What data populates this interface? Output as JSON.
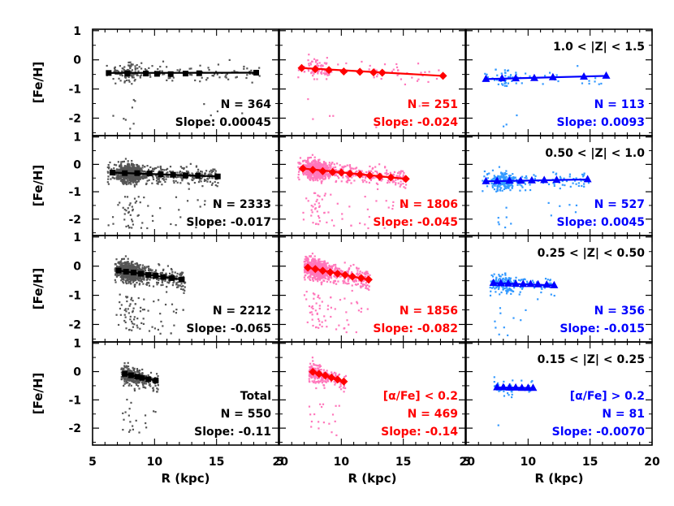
{
  "chart_data": {
    "type": "scatter",
    "figure": {
      "xlabel": "R (kpc)",
      "ylabel": "[Fe/H]",
      "xlim": [
        5,
        20
      ],
      "ylim": [
        -2.6,
        1.05
      ],
      "yticks": [
        -2,
        -1,
        0,
        1
      ],
      "xticks_col0": [
        "5",
        "10",
        "15",
        "20"
      ],
      "xticks_col1": [
        "5",
        "10",
        "15",
        "20"
      ],
      "xticks_col2": [
        "5",
        "10",
        "15",
        "20"
      ],
      "colors": {
        "total_points": "#555555",
        "total_fit": "#000000",
        "low_alpha_points": "#ff77bb",
        "low_alpha_fit": "#ff0000",
        "high_alpha_points": "#3399ff",
        "high_alpha_fit": "#0000ff"
      }
    },
    "rows": [
      {
        "z_label": "1.0 < |Z| < 1.5",
        "panels": [
          {
            "group": "total",
            "n_label": "N = 364",
            "slope_label": "Slope: 0.00045",
            "n": 364,
            "slope": 0.00045,
            "x_range": [
              6.0,
              18.5
            ],
            "intercept_at_x0": -0.45,
            "x0": 6.0,
            "binned": [
              [
                6.3,
                -0.45
              ],
              [
                7.8,
                -0.47
              ],
              [
                9.3,
                -0.47
              ],
              [
                10.2,
                -0.48
              ],
              [
                11.3,
                -0.49
              ],
              [
                12.5,
                -0.47
              ],
              [
                13.6,
                -0.46
              ],
              [
                18.2,
                -0.44
              ]
            ]
          },
          {
            "group": "low_alpha",
            "n_label": "N = 251",
            "slope_label": "Slope: -0.024",
            "n": 251,
            "slope": -0.024,
            "x_range": [
              6.5,
              18.2
            ],
            "intercept_at_x0": -0.27,
            "x0": 6.5,
            "binned": [
              [
                6.8,
                -0.28
              ],
              [
                7.9,
                -0.32
              ],
              [
                9.0,
                -0.35
              ],
              [
                10.2,
                -0.4
              ],
              [
                11.5,
                -0.41
              ],
              [
                12.6,
                -0.43
              ],
              [
                13.3,
                -0.44
              ],
              [
                18.2,
                -0.55
              ]
            ]
          },
          {
            "group": "high_alpha",
            "n_label": "N = 113",
            "slope_label": "Slope: 0.0093",
            "n": 113,
            "slope": 0.0093,
            "x_range": [
              6.3,
              16.3
            ],
            "intercept_at_x0": -0.65,
            "x0": 6.3,
            "binned": [
              [
                6.6,
                -0.66
              ],
              [
                7.9,
                -0.64
              ],
              [
                9.0,
                -0.64
              ],
              [
                10.5,
                -0.63
              ],
              [
                12.0,
                -0.6
              ],
              [
                14.5,
                -0.58
              ],
              [
                16.3,
                -0.55
              ]
            ]
          }
        ]
      },
      {
        "z_label": "0.50 < |Z| < 1.0",
        "panels": [
          {
            "group": "total",
            "n_label": "N = 2333",
            "slope_label": "Slope: -0.017",
            "n": 2333,
            "slope": -0.017,
            "x_range": [
              6.2,
              15.2
            ],
            "intercept_at_x0": -0.29,
            "x0": 6.2,
            "binned": [
              [
                6.6,
                -0.3
              ],
              [
                7.6,
                -0.32
              ],
              [
                8.6,
                -0.32
              ],
              [
                9.6,
                -0.33
              ],
              [
                10.5,
                -0.36
              ],
              [
                11.5,
                -0.38
              ],
              [
                12.5,
                -0.4
              ],
              [
                13.5,
                -0.42
              ],
              [
                15.1,
                -0.44
              ]
            ]
          },
          {
            "group": "low_alpha",
            "n_label": "N = 1806",
            "slope_label": "Slope: -0.045",
            "n": 1806,
            "slope": -0.045,
            "x_range": [
              6.5,
              15.3
            ],
            "intercept_at_x0": -0.12,
            "x0": 6.5,
            "binned": [
              [
                6.9,
                -0.15
              ],
              [
                7.7,
                -0.2
              ],
              [
                8.5,
                -0.25
              ],
              [
                9.3,
                -0.28
              ],
              [
                10.0,
                -0.3
              ],
              [
                10.7,
                -0.34
              ],
              [
                11.5,
                -0.37
              ],
              [
                12.3,
                -0.41
              ],
              [
                13.1,
                -0.45
              ],
              [
                14.0,
                -0.48
              ],
              [
                15.2,
                -0.53
              ]
            ]
          },
          {
            "group": "high_alpha",
            "n_label": "N = 527",
            "slope_label": "Slope: 0.0045",
            "n": 527,
            "slope": 0.0045,
            "x_range": [
              6.3,
              15.0
            ],
            "intercept_at_x0": -0.62,
            "x0": 6.3,
            "binned": [
              [
                6.6,
                -0.62
              ],
              [
                7.5,
                -0.61
              ],
              [
                8.5,
                -0.6
              ],
              [
                9.4,
                -0.6
              ],
              [
                10.3,
                -0.59
              ],
              [
                11.3,
                -0.58
              ],
              [
                12.3,
                -0.57
              ],
              [
                14.8,
                -0.55
              ]
            ]
          }
        ]
      },
      {
        "z_label": "0.25 < |Z| < 0.50",
        "panels": [
          {
            "group": "total",
            "n_label": "N = 2212",
            "slope_label": "Slope: -0.065",
            "n": 2212,
            "slope": -0.065,
            "x_range": [
              6.8,
              12.5
            ],
            "intercept_at_x0": -0.12,
            "x0": 6.8,
            "binned": [
              [
                7.1,
                -0.15
              ],
              [
                7.7,
                -0.19
              ],
              [
                8.3,
                -0.22
              ],
              [
                8.9,
                -0.26
              ],
              [
                9.5,
                -0.3
              ],
              [
                10.1,
                -0.33
              ],
              [
                10.7,
                -0.37
              ],
              [
                11.4,
                -0.41
              ],
              [
                12.2,
                -0.46
              ]
            ]
          },
          {
            "group": "low_alpha",
            "n_label": "N = 1856",
            "slope_label": "Slope: -0.082",
            "n": 1856,
            "slope": -0.082,
            "x_range": [
              7.0,
              12.3
            ],
            "intercept_at_x0": -0.03,
            "x0": 7.0,
            "binned": [
              [
                7.3,
                -0.05
              ],
              [
                7.9,
                -0.1
              ],
              [
                8.5,
                -0.16
              ],
              [
                9.1,
                -0.21
              ],
              [
                9.7,
                -0.26
              ],
              [
                10.3,
                -0.3
              ],
              [
                10.9,
                -0.36
              ],
              [
                11.6,
                -0.41
              ],
              [
                12.2,
                -0.46
              ]
            ]
          },
          {
            "group": "high_alpha",
            "n_label": "N = 356",
            "slope_label": "Slope: -0.015",
            "n": 356,
            "slope": -0.015,
            "x_range": [
              6.9,
              12.2
            ],
            "intercept_at_x0": -0.58,
            "x0": 6.9,
            "binned": [
              [
                7.2,
                -0.58
              ],
              [
                7.8,
                -0.59
              ],
              [
                8.4,
                -0.6
              ],
              [
                9.0,
                -0.61
              ],
              [
                9.6,
                -0.62
              ],
              [
                10.2,
                -0.62
              ],
              [
                10.8,
                -0.63
              ],
              [
                11.5,
                -0.64
              ],
              [
                12.1,
                -0.66
              ]
            ]
          }
        ]
      },
      {
        "z_label": "0.15 < |Z| < 0.25",
        "panels": [
          {
            "group": "total",
            "n_label": "N = 550",
            "slope_label": "Slope: -0.11",
            "extra_label": "Total",
            "n": 550,
            "slope": -0.11,
            "x_range": [
              7.3,
              10.3
            ],
            "intercept_at_x0": -0.07,
            "x0": 7.3,
            "binned": [
              [
                7.6,
                -0.08
              ],
              [
                8.1,
                -0.13
              ],
              [
                8.6,
                -0.18
              ],
              [
                9.0,
                -0.22
              ],
              [
                9.5,
                -0.27
              ],
              [
                10.1,
                -0.32
              ]
            ]
          },
          {
            "group": "low_alpha",
            "n_label": "N = 469",
            "slope_label": "Slope: -0.14",
            "extra_label": "[α/Fe] < 0.2",
            "n": 469,
            "slope": -0.14,
            "x_range": [
              7.4,
              10.4
            ],
            "intercept_at_x0": 0.02,
            "x0": 7.4,
            "binned": [
              [
                7.7,
                -0.01
              ],
              [
                8.2,
                -0.08
              ],
              [
                8.7,
                -0.14
              ],
              [
                9.2,
                -0.21
              ],
              [
                9.7,
                -0.28
              ],
              [
                10.2,
                -0.35
              ]
            ]
          },
          {
            "group": "high_alpha",
            "n_label": "N = 81",
            "slope_label": "Slope: -0.0070",
            "extra_label": "[α/Fe] > 0.2",
            "n": 81,
            "slope": -0.007,
            "x_range": [
              7.2,
              10.5
            ],
            "intercept_at_x0": -0.56,
            "x0": 7.2,
            "binned": [
              [
                7.5,
                -0.56
              ],
              [
                8.0,
                -0.56
              ],
              [
                8.5,
                -0.57
              ],
              [
                9.0,
                -0.57
              ],
              [
                9.5,
                -0.58
              ],
              [
                10.0,
                -0.58
              ],
              [
                10.4,
                -0.58
              ]
            ]
          }
        ]
      }
    ]
  }
}
